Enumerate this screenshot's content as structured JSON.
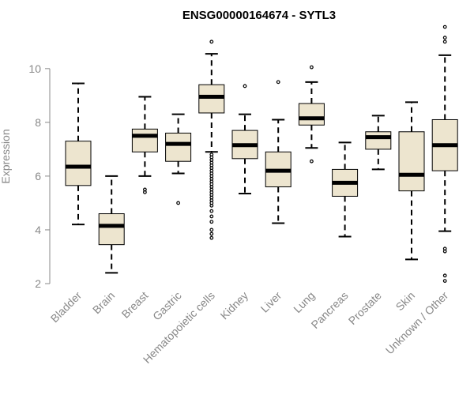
{
  "chart_data": {
    "type": "boxplot",
    "title": "ENSG00000164674 - SYTL3",
    "ylabel": "Expression",
    "xlabel": "",
    "ylim": [
      2,
      11.7
    ],
    "yticks": [
      2,
      4,
      6,
      8,
      10
    ],
    "box_fill": "#ede5cf",
    "line_color": "#000000",
    "axis_color": "#888888",
    "categories": [
      "Bladder",
      "Brain",
      "Breast",
      "Gastric",
      "Hematopoietic cells",
      "Kidney",
      "Liver",
      "Lung",
      "Pancreas",
      "Prostate",
      "Skin",
      "Unknown / Other"
    ],
    "boxes": [
      {
        "q1": 5.65,
        "median": 6.35,
        "q3": 7.3,
        "whisker_low": 4.2,
        "whisker_high": 9.45,
        "outliers": []
      },
      {
        "q1": 3.45,
        "median": 4.15,
        "q3": 4.6,
        "whisker_low": 2.4,
        "whisker_high": 6.0,
        "outliers": []
      },
      {
        "q1": 6.9,
        "median": 7.5,
        "q3": 7.75,
        "whisker_low": 6.0,
        "whisker_high": 8.95,
        "outliers": [
          5.4,
          5.5
        ]
      },
      {
        "q1": 6.55,
        "median": 7.2,
        "q3": 7.6,
        "whisker_low": 6.1,
        "whisker_high": 8.3,
        "outliers": [
          5.0
        ]
      },
      {
        "q1": 8.35,
        "median": 8.95,
        "q3": 9.4,
        "whisker_low": 6.9,
        "whisker_high": 10.55,
        "outliers": [
          11.0,
          6.8,
          6.7,
          6.6,
          6.5,
          6.4,
          6.3,
          6.2,
          6.1,
          6.0,
          5.9,
          5.8,
          5.7,
          5.6,
          5.5,
          5.4,
          5.3,
          5.2,
          5.1,
          5.0,
          4.9,
          4.7,
          4.5,
          4.3,
          4.0,
          3.85,
          3.7
        ]
      },
      {
        "q1": 6.65,
        "median": 7.15,
        "q3": 7.7,
        "whisker_low": 5.35,
        "whisker_high": 8.3,
        "outliers": [
          9.35
        ]
      },
      {
        "q1": 5.6,
        "median": 6.2,
        "q3": 6.9,
        "whisker_low": 4.25,
        "whisker_high": 8.1,
        "outliers": [
          9.5
        ]
      },
      {
        "q1": 7.9,
        "median": 8.15,
        "q3": 8.7,
        "whisker_low": 7.05,
        "whisker_high": 9.5,
        "outliers": [
          10.05,
          6.55
        ]
      },
      {
        "q1": 5.25,
        "median": 5.75,
        "q3": 6.25,
        "whisker_low": 3.75,
        "whisker_high": 7.25,
        "outliers": []
      },
      {
        "q1": 7.0,
        "median": 7.45,
        "q3": 7.65,
        "whisker_low": 6.25,
        "whisker_high": 8.25,
        "outliers": []
      },
      {
        "q1": 5.45,
        "median": 6.05,
        "q3": 7.65,
        "whisker_low": 2.9,
        "whisker_high": 8.75,
        "outliers": []
      },
      {
        "q1": 6.2,
        "median": 7.15,
        "q3": 8.1,
        "whisker_low": 3.95,
        "whisker_high": 10.5,
        "outliers": [
          11.55,
          11.15,
          11.0,
          3.3,
          3.2,
          2.3,
          2.1
        ]
      }
    ]
  }
}
